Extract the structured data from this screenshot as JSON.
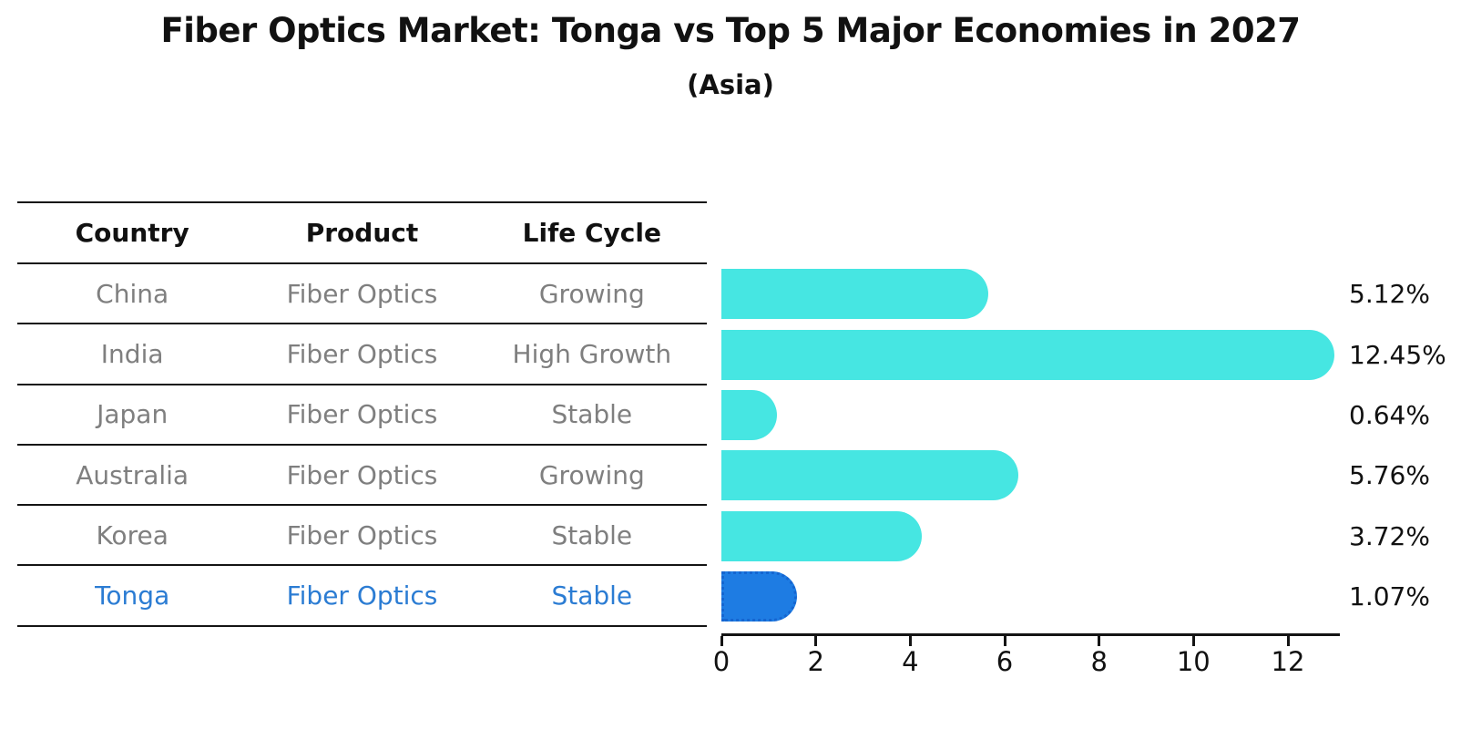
{
  "title": "Fiber Optics Market: Tonga vs Top 5 Major Economies in 2027",
  "subtitle": "(Asia)",
  "table": {
    "headers": [
      "Country",
      "Product",
      "Life Cycle"
    ],
    "rows": [
      {
        "country": "China",
        "product": "Fiber Optics",
        "life_cycle": "Growing"
      },
      {
        "country": "India",
        "product": "Fiber Optics",
        "life_cycle": "High Growth"
      },
      {
        "country": "Japan",
        "product": "Fiber Optics",
        "life_cycle": "Stable"
      },
      {
        "country": "Australia",
        "product": "Fiber Optics",
        "life_cycle": "Growing"
      },
      {
        "country": "Korea",
        "product": "Fiber Optics",
        "life_cycle": "Stable"
      },
      {
        "country": "Tonga",
        "product": "Fiber Optics",
        "life_cycle": "Stable"
      }
    ],
    "highlight_row": "Tonga"
  },
  "chart_data": {
    "type": "bar",
    "orientation": "horizontal",
    "title": "Fiber Optics Market: Tonga vs Top 5 Major Economies in 2027 (Asia)",
    "categories": [
      "China",
      "India",
      "Japan",
      "Australia",
      "Korea",
      "Tonga"
    ],
    "values": [
      5.12,
      12.45,
      0.64,
      5.76,
      3.72,
      1.07
    ],
    "value_labels": [
      "5.12%",
      "12.45%",
      "0.64%",
      "5.76%",
      "3.72%",
      "1.07%"
    ],
    "x_ticks": [
      0,
      2,
      4,
      6,
      8,
      10,
      12
    ],
    "xlim": [
      0,
      13.1
    ],
    "grid": false,
    "legend": false,
    "bar_color": "#46E6E2",
    "highlight_color": "#1E7CE3",
    "highlight_edge_color": "#1565D0",
    "highlight_index": 5
  },
  "colors": {
    "text": "#111111",
    "muted_text": "#7f7f7f",
    "highlight_text": "#2B7CD3",
    "line": "#141414"
  }
}
